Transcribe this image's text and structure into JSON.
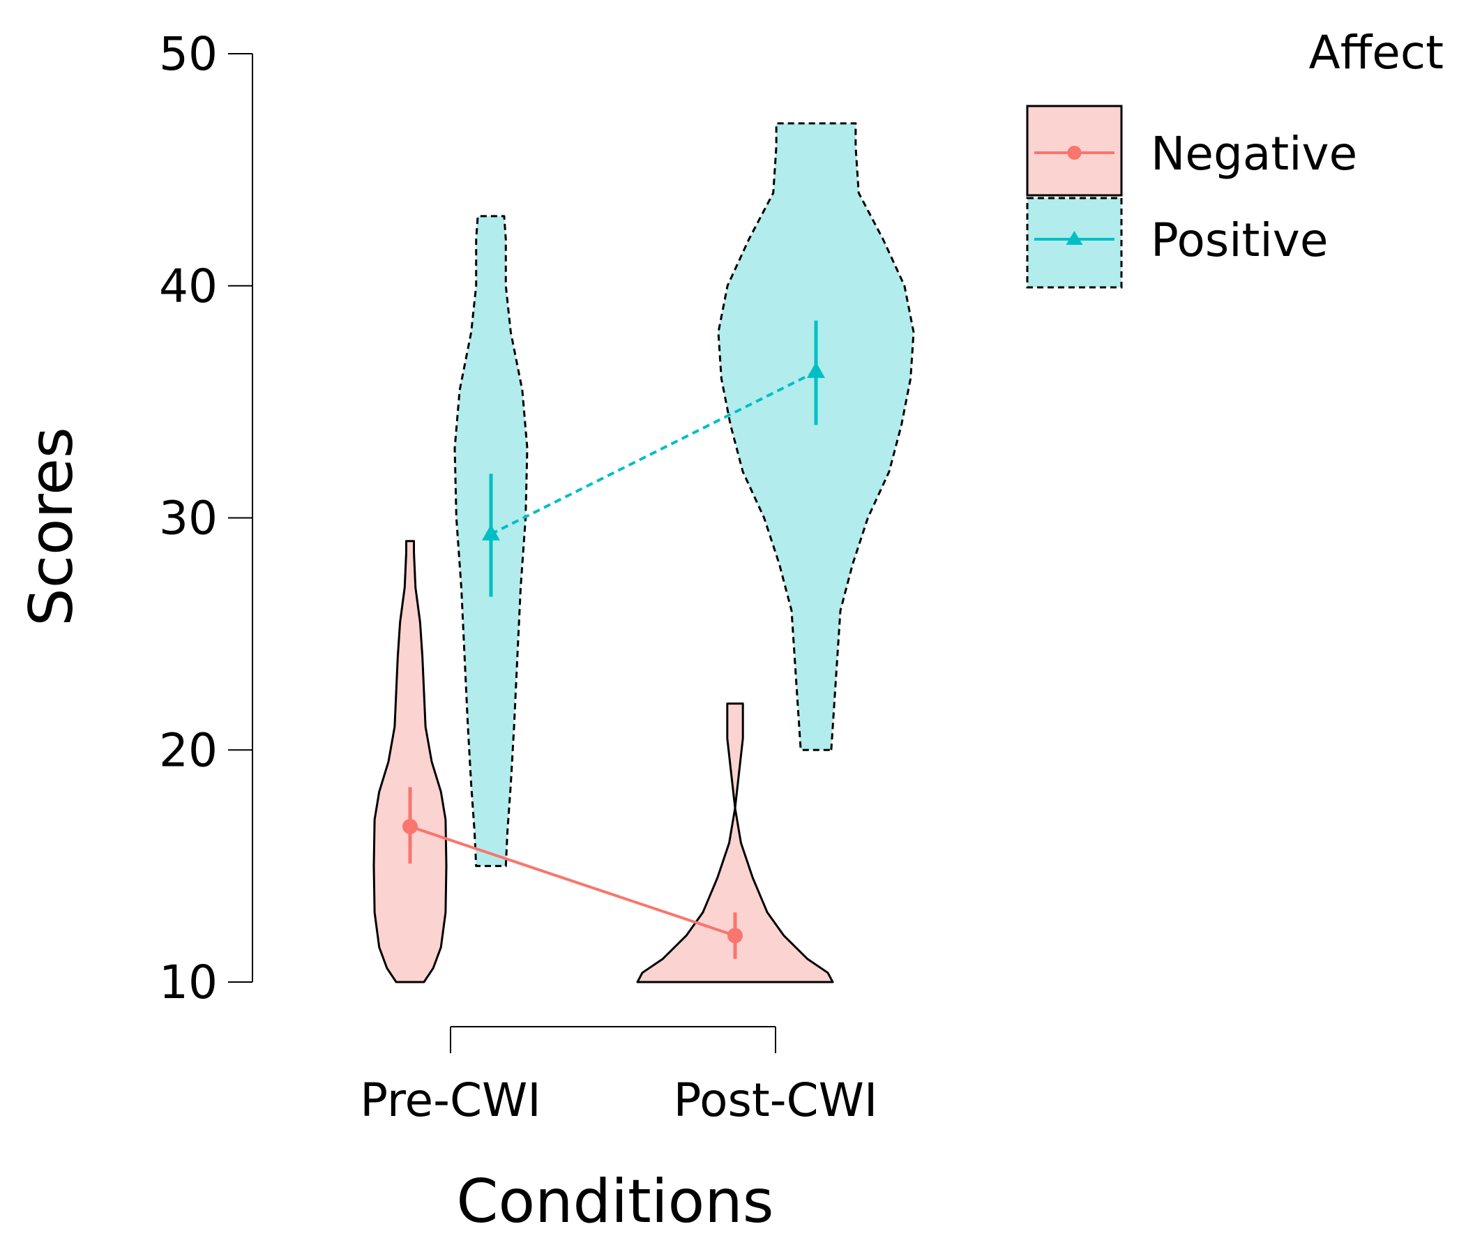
{
  "chart_data": {
    "type": "violin",
    "title": "",
    "xlabel": "Conditions",
    "ylabel": "Scores",
    "ylim": [
      10,
      50
    ],
    "yticks": [
      10,
      20,
      30,
      40,
      50
    ],
    "categories": [
      "Pre-CWI",
      "Post-CWI"
    ],
    "legend": {
      "title": "Affect",
      "placement": "top-right",
      "entries": [
        "Negative",
        "Positive"
      ]
    },
    "colors": {
      "Negative": {
        "fill": "#fbd3d0",
        "line": "#f8766d"
      },
      "Positive": {
        "fill": "#b2ecec",
        "line": "#00bfc4"
      }
    },
    "series": [
      {
        "name": "Negative",
        "marker": "circle",
        "outline": "solid",
        "means": [
          16.7,
          12.0
        ],
        "ci_low": [
          15.1,
          11.0
        ],
        "ci_high": [
          18.4,
          13.0
        ],
        "violins": [
          {
            "category": "Pre-CWI",
            "profile": [
              [
                10,
                0.18
              ],
              [
                10.6,
                0.3
              ],
              [
                11.5,
                0.4
              ],
              [
                13,
                0.46
              ],
              [
                15,
                0.47
              ],
              [
                17,
                0.46
              ],
              [
                18.2,
                0.4
              ],
              [
                19.5,
                0.28
              ],
              [
                21,
                0.2
              ],
              [
                22.5,
                0.18
              ],
              [
                24,
                0.16
              ],
              [
                25.5,
                0.13
              ],
              [
                27,
                0.07
              ],
              [
                28.5,
                0.05
              ],
              [
                29,
                0.05
              ]
            ]
          },
          {
            "category": "Post-CWI",
            "profile": [
              [
                10,
                1.0
              ],
              [
                10.4,
                0.95
              ],
              [
                11,
                0.74
              ],
              [
                12,
                0.5
              ],
              [
                13,
                0.33
              ],
              [
                14.5,
                0.18
              ],
              [
                16,
                0.06
              ],
              [
                17.5,
                0.0
              ],
              [
                19,
                0.04
              ],
              [
                20.5,
                0.08
              ],
              [
                21.5,
                0.08
              ],
              [
                22,
                0.08
              ]
            ]
          }
        ]
      },
      {
        "name": "Positive",
        "marker": "triangle",
        "outline": "dashed",
        "means": [
          29.3,
          36.3
        ],
        "ci_low": [
          26.6,
          34.0
        ],
        "ci_high": [
          31.9,
          38.5
        ],
        "violins": [
          {
            "category": "Pre-CWI",
            "profile": [
              [
                15,
                0.09
              ],
              [
                16.5,
                0.1
              ],
              [
                18.5,
                0.12
              ],
              [
                21,
                0.14
              ],
              [
                24,
                0.16
              ],
              [
                27,
                0.18
              ],
              [
                30,
                0.21
              ],
              [
                33,
                0.22
              ],
              [
                35.5,
                0.19
              ],
              [
                38,
                0.12
              ],
              [
                40,
                0.09
              ],
              [
                42,
                0.09
              ],
              [
                43,
                0.08
              ]
            ]
          },
          {
            "category": "Post-CWI",
            "profile": [
              [
                20,
                0.05
              ],
              [
                22,
                0.06
              ],
              [
                24,
                0.07
              ],
              [
                26,
                0.08
              ],
              [
                28,
                0.12
              ],
              [
                30,
                0.17
              ],
              [
                32,
                0.24
              ],
              [
                34,
                0.28
              ],
              [
                36,
                0.31
              ],
              [
                38,
                0.32
              ],
              [
                40,
                0.29
              ],
              [
                42,
                0.22
              ],
              [
                44,
                0.14
              ],
              [
                46,
                0.13
              ],
              [
                47,
                0.13
              ]
            ]
          }
        ]
      }
    ]
  }
}
